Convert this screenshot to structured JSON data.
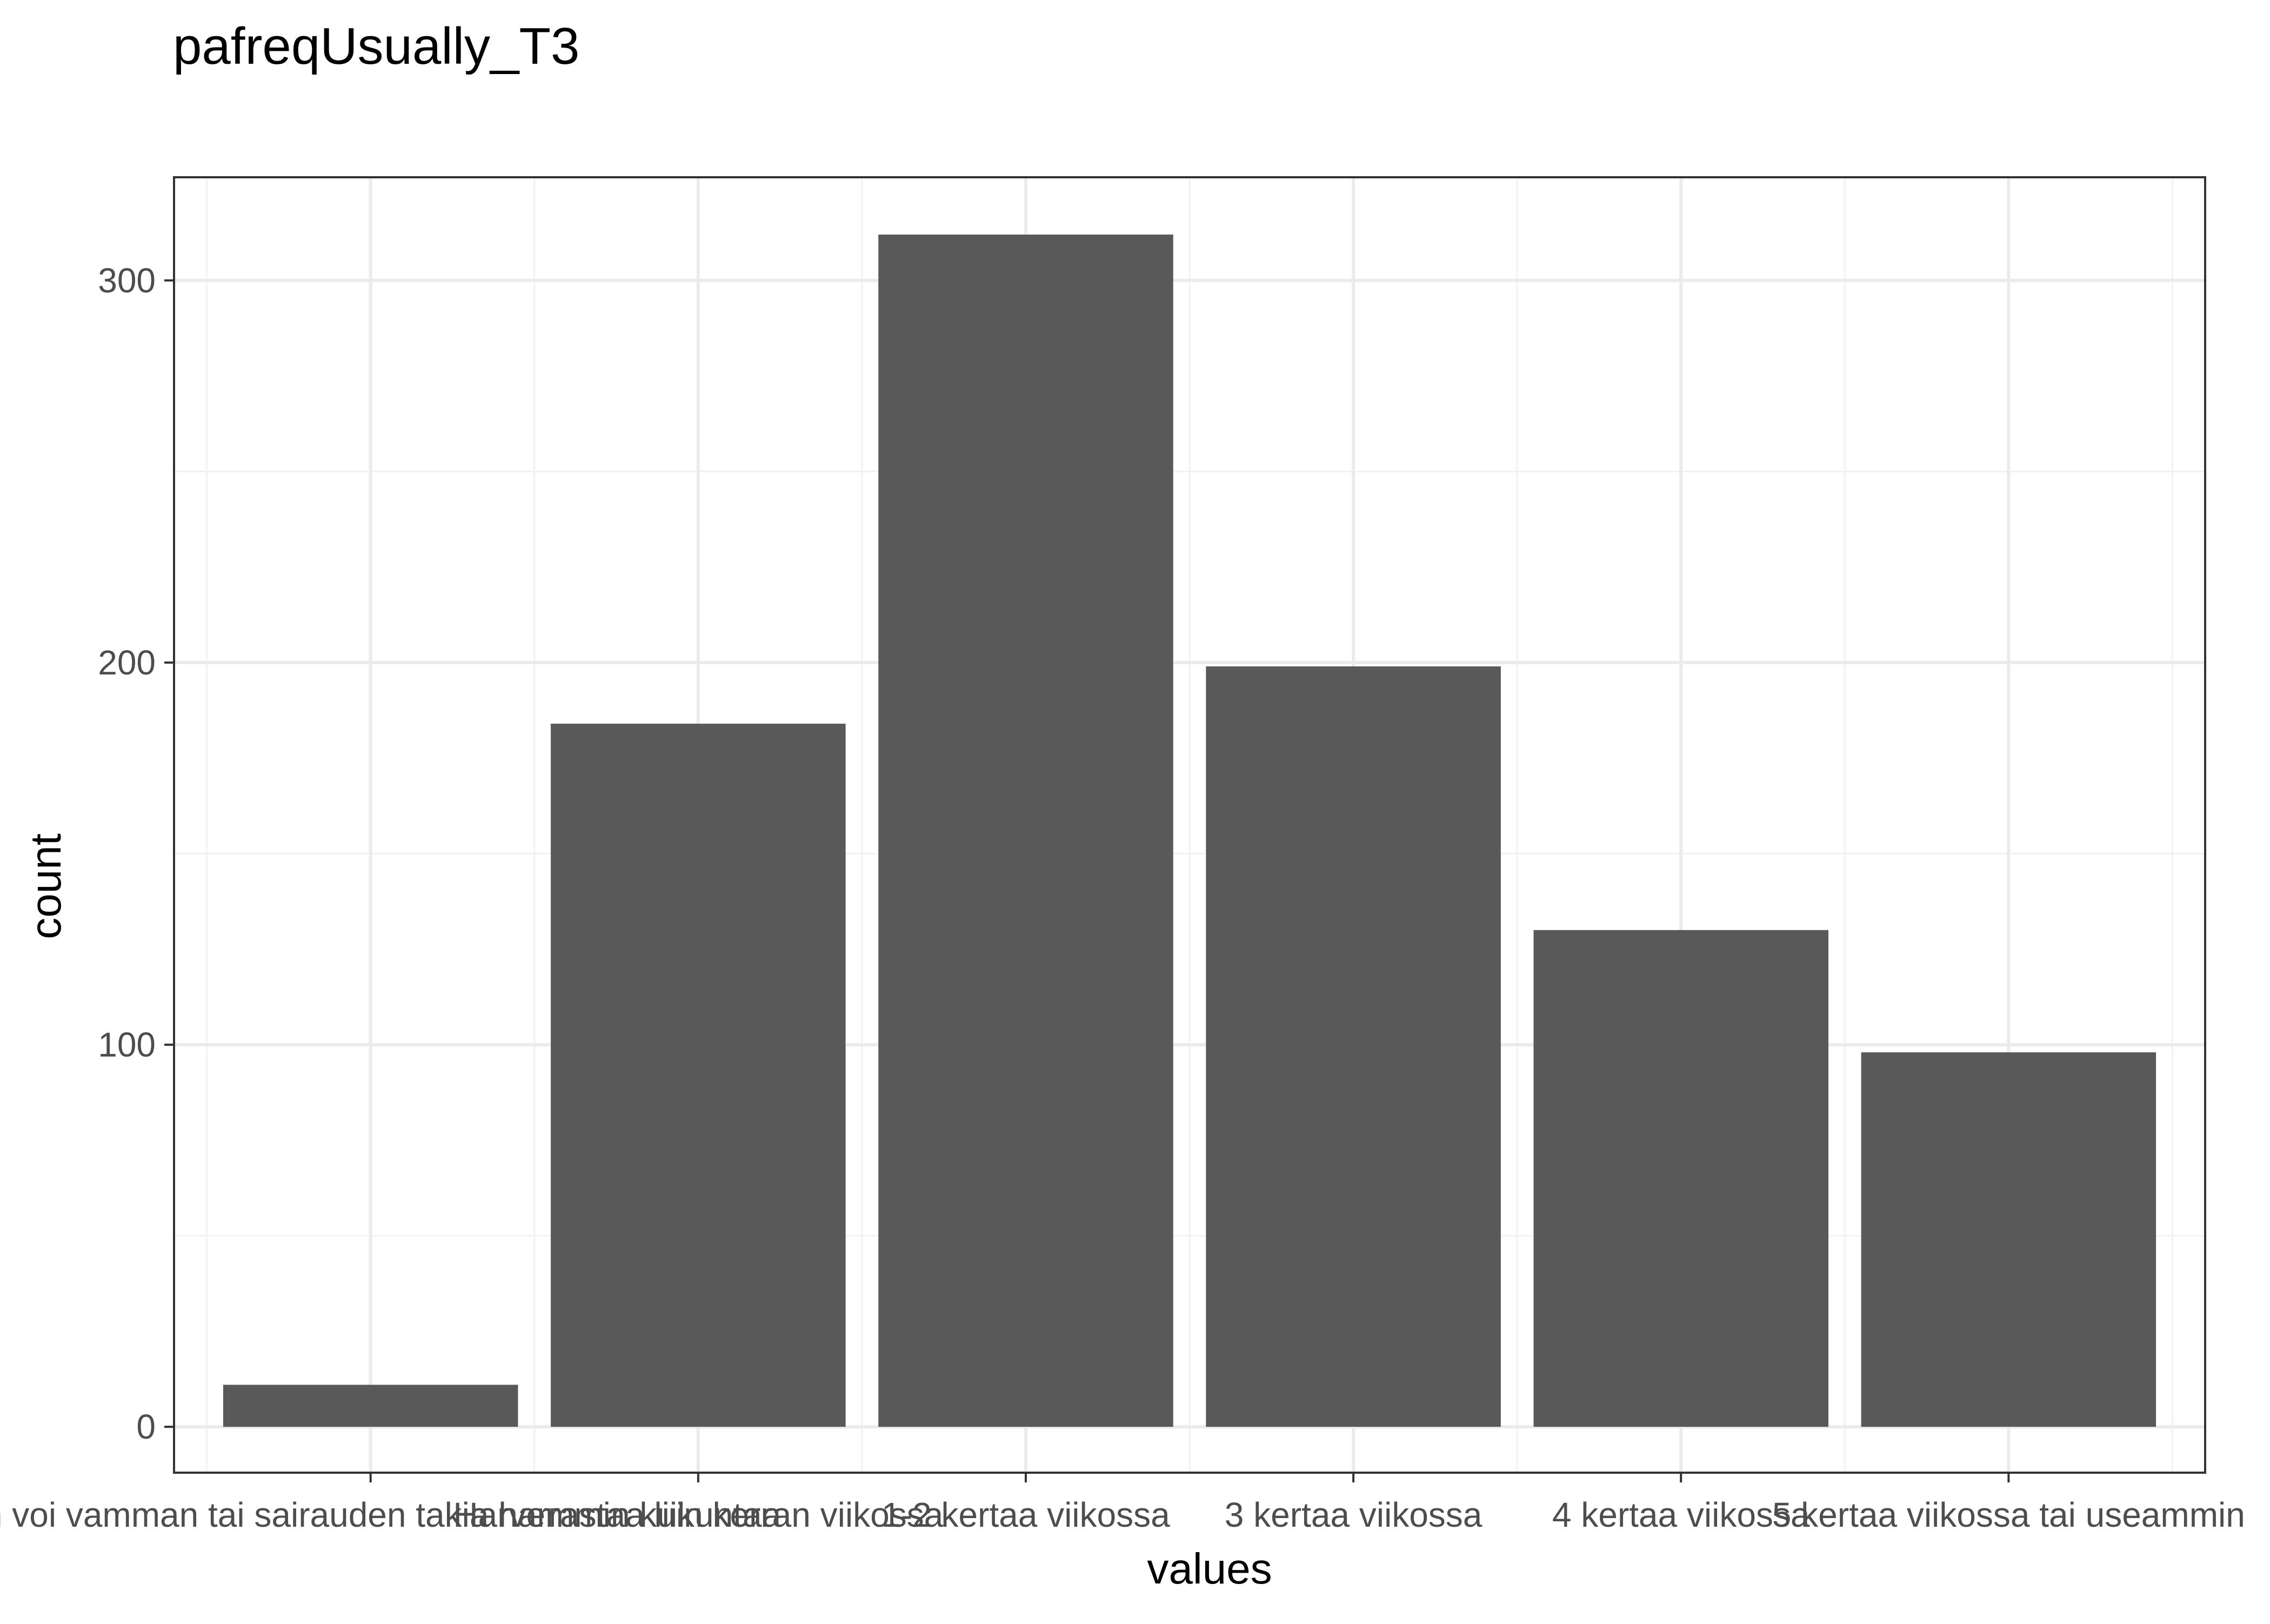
{
  "chart_data": {
    "type": "bar",
    "title": "pafreqUsually_T3",
    "xlabel": "values",
    "ylabel": "count",
    "categories": [
      "En voi vamman tai sairauden takia harrastaa liikuntaa",
      "Harvemmin kuin kerran viikossa",
      "1-2 kertaa viikossa",
      "3 kertaa viikossa",
      "4 kertaa viikossa",
      "5 kertaa viikossa tai useammin"
    ],
    "values": [
      11,
      184,
      312,
      199,
      130,
      98
    ],
    "ylim": [
      -12,
      327
    ],
    "yticks": [
      0,
      100,
      200,
      300
    ],
    "grid": true,
    "bar_color": "#595959",
    "panel_border_color": "#333333",
    "grid_major_color": "#ebebeb",
    "grid_minor_color": "#f2f2f2"
  }
}
